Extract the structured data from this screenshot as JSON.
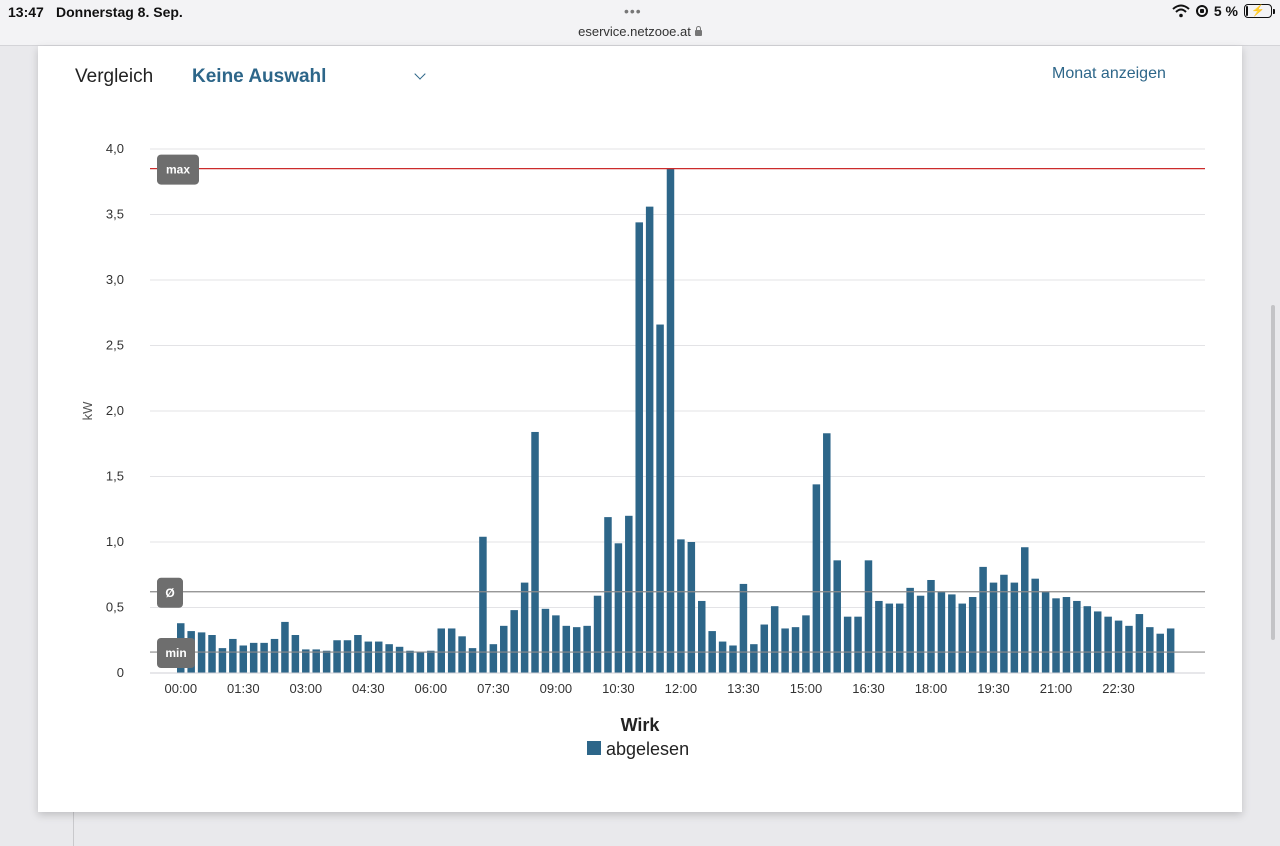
{
  "status_bar": {
    "time": "13:47",
    "date": "Donnerstag 8. Sep.",
    "url": "eservice.netzooe.at",
    "battery": "5 %",
    "icons": [
      "wifi-icon",
      "orientation-lock-icon",
      "battery-charging-icon",
      "padlock-icon"
    ]
  },
  "toolbar": {
    "compare_label": "Vergleich",
    "compare_value": "Keine Auswahl",
    "month_link": "Monat anzeigen"
  },
  "colors": {
    "bar": "#2d6689",
    "max_line": "#cc2b2b",
    "ref_line": "#8a8a8a",
    "badge": "#6e6e6e",
    "link": "#2d6689"
  },
  "chart_data": {
    "type": "bar",
    "title": "",
    "xlabel": "Wirk",
    "ylabel": "kW",
    "ylim": [
      0,
      4.0
    ],
    "yticks": [
      "0",
      "0,5",
      "1,0",
      "1,5",
      "2,0",
      "2,5",
      "3,0",
      "3,5",
      "4,0"
    ],
    "xticks": [
      "00:00",
      "01:30",
      "03:00",
      "04:30",
      "06:00",
      "07:30",
      "09:00",
      "10:30",
      "12:00",
      "13:30",
      "15:00",
      "16:30",
      "18:00",
      "19:30",
      "21:00",
      "22:30"
    ],
    "interval": "15 min (96 bars per day)",
    "grid": true,
    "legend": "bottom-center",
    "series": [
      {
        "name": "abgelesen",
        "values": [
          0.38,
          0.32,
          0.31,
          0.29,
          0.19,
          0.26,
          0.21,
          0.23,
          0.23,
          0.26,
          0.39,
          0.29,
          0.18,
          0.18,
          0.17,
          0.25,
          0.25,
          0.29,
          0.24,
          0.24,
          0.22,
          0.2,
          0.17,
          0.16,
          0.17,
          0.34,
          0.34,
          0.28,
          0.19,
          1.04,
          0.22,
          0.36,
          0.48,
          0.69,
          1.84,
          0.49,
          0.44,
          0.36,
          0.35,
          0.36,
          0.59,
          1.19,
          0.99,
          1.2,
          3.44,
          3.56,
          2.66,
          3.85,
          1.02,
          1.0,
          0.55,
          0.32,
          0.24,
          0.21,
          0.68,
          0.22,
          0.37,
          0.51,
          0.34,
          0.35,
          0.44,
          1.44,
          1.83,
          0.86,
          0.43,
          0.43,
          0.86,
          0.55,
          0.53,
          0.53,
          0.65,
          0.59,
          0.71,
          0.62,
          0.6,
          0.53,
          0.58,
          0.81,
          0.69,
          0.75,
          0.69,
          0.96,
          0.72,
          0.62,
          0.57,
          0.58,
          0.55,
          0.51,
          0.47,
          0.43,
          0.4,
          0.36,
          0.45,
          0.35,
          0.3,
          0.34
        ]
      }
    ],
    "reference_lines": [
      {
        "label": "max",
        "value": 3.85
      },
      {
        "label": "Ø",
        "value": 0.62
      },
      {
        "label": "min",
        "value": 0.16
      }
    ]
  }
}
